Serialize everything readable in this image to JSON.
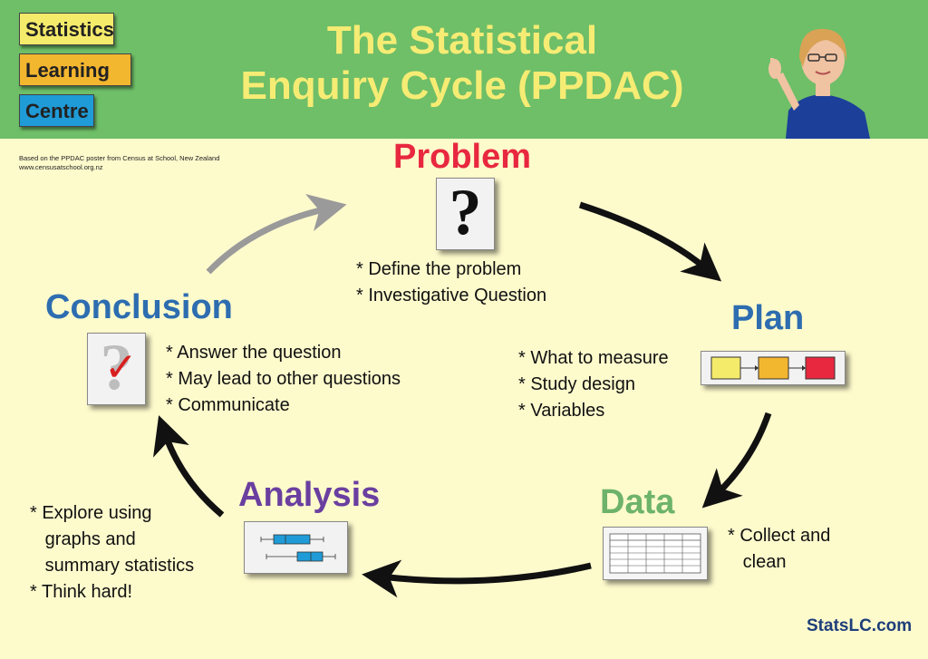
{
  "header": {
    "logo": [
      "Statistics",
      "Learning",
      "Centre"
    ],
    "title_line1": "The Statistical",
    "title_line2": "Enquiry Cycle (PPDAC)"
  },
  "credit": {
    "line1": "Based on the PPDAC poster from Census at School, New Zealand",
    "line2": "www.censusatschool.org.nz"
  },
  "stages": {
    "problem": {
      "title": "Problem",
      "color": "#e8283f",
      "bullets": "* Define the problem\n* Investigative Question"
    },
    "plan": {
      "title": "Plan",
      "color": "#2d6db0",
      "bullets": "* What to measure\n* Study design\n* Variables"
    },
    "data": {
      "title": "Data",
      "color": "#6db36a",
      "bullets": "* Collect and\n   clean"
    },
    "analysis": {
      "title": "Analysis",
      "color": "#6a3fa0",
      "bullets": "* Explore using\n   graphs and\n   summary statistics\n* Think hard!"
    },
    "conclusion": {
      "title": "Conclusion",
      "color": "#2d6db0",
      "bullets": "* Answer the question\n* May lead to other questions\n* Communicate"
    }
  },
  "icons": {
    "question_mark": "?",
    "check_mark": "✓"
  },
  "colors": {
    "header_bg": "#6fbe68",
    "page_bg": "#fdfacc",
    "title": "#f6ec74",
    "arrow_black": "#111111",
    "arrow_grey": "#9a9a9a",
    "plan_box1": "#f5eb6b",
    "plan_box2": "#f3b62f",
    "plan_box3": "#e8283f",
    "boxplot": "#1f9bd7"
  },
  "footer": "StatsLC.com"
}
